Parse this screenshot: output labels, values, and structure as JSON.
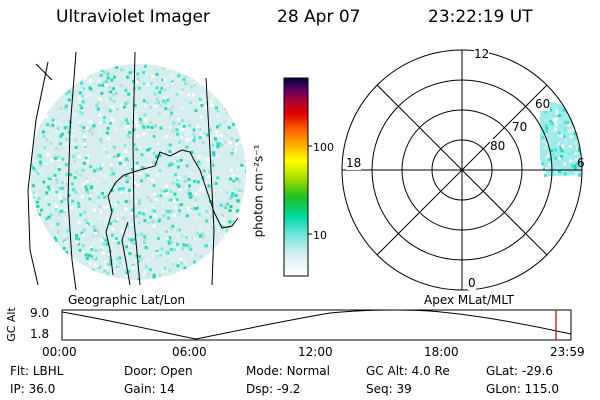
{
  "header": {
    "instrument": "Ultraviolet Imager",
    "date": "28 Apr 07",
    "time": "23:22:19 UT"
  },
  "colorbar": {
    "unit_label": "photon cm⁻²s⁻¹",
    "ticks": [
      "100",
      "10"
    ]
  },
  "polar": {
    "mlt_labels": [
      "12",
      "18",
      "6",
      "0"
    ],
    "lat_labels": [
      "60",
      "70",
      "80"
    ]
  },
  "timeline": {
    "left_title": "Geographic Lat/Lon",
    "right_title": "Apex MLat/MLT",
    "axis_label": "GC Alt",
    "y_ticks": [
      "9.0",
      "1.8"
    ],
    "x_ticks": [
      "00:00",
      "06:00",
      "12:00",
      "18:00",
      "23:59"
    ],
    "marker_color": "#cc0000"
  },
  "status": {
    "row1": [
      {
        "label": "Flt:",
        "value": "LBHL"
      },
      {
        "label": "Door:",
        "value": "Open"
      },
      {
        "label": "Mode:",
        "value": "Normal"
      },
      {
        "label": "GC Alt:",
        "value": "4.0 Re"
      },
      {
        "label": "GLat:",
        "value": "-29.6"
      }
    ],
    "row2": [
      {
        "label": "IP:",
        "value": "36.0"
      },
      {
        "label": "Gain:",
        "value": "14"
      },
      {
        "label": "Dsp:",
        "value": "-9.2"
      },
      {
        "label": "Seq:",
        "value": "39"
      },
      {
        "label": "GLon:",
        "value": "115.0"
      }
    ]
  }
}
